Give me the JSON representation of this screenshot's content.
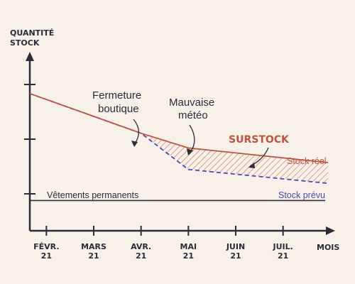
{
  "colors": {
    "background": "#f7f1ea",
    "axis": "#2b2b3a",
    "real": "#c0533e",
    "forecast": "#4b4bb2",
    "hatch": "#d9735f"
  },
  "chart_data": {
    "type": "line",
    "title": "",
    "ylabel": [
      "QUANTITÉ",
      "STOCK"
    ],
    "xlabel": "MOIS",
    "x": [
      {
        "label": [
          "FÉVR.",
          "21"
        ],
        "value": 0
      },
      {
        "label": [
          "MARS",
          "21"
        ],
        "value": 1
      },
      {
        "label": [
          "AVR.",
          "21"
        ],
        "value": 2
      },
      {
        "label": [
          "MAI",
          "21"
        ],
        "value": 3
      },
      {
        "label": [
          "JUIN",
          "21"
        ],
        "value": 4
      },
      {
        "label": [
          "JUIL.",
          "21"
        ],
        "value": 5
      }
    ],
    "xlim": [
      -0.35,
      5.95
    ],
    "ylim": [
      0,
      200
    ],
    "grid": false,
    "series": [
      {
        "key": "real",
        "name": "Stock réel",
        "style": "solid",
        "points": [
          [
            -0.35,
            159
          ],
          [
            2.0,
            113
          ],
          [
            3.0,
            96
          ],
          [
            5.95,
            79
          ]
        ]
      },
      {
        "key": "forecast",
        "name": "Stock prévu",
        "style": "dashed",
        "points": [
          [
            -0.35,
            159
          ],
          [
            2.0,
            113
          ],
          [
            3.0,
            71
          ],
          [
            5.95,
            55
          ]
        ]
      }
    ],
    "baseline": {
      "label": "Vêtements permanents",
      "value": 35
    },
    "surplus_label": "SURSTOCK",
    "annotations": [
      {
        "text": [
          "Fermeture",
          "boutique"
        ],
        "x": 2.0
      },
      {
        "text": [
          "Mauvaise",
          "météo"
        ],
        "x": 3.0
      }
    ]
  }
}
